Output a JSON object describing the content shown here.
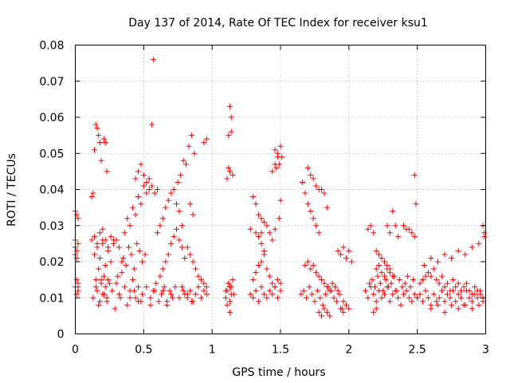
{
  "chart_data": {
    "type": "scatter",
    "title": "Day 137 of 2014, Rate Of TEC Index for receiver ksu1",
    "xlabel": "GPS time / hours",
    "ylabel": "ROTI / TECUs",
    "xlim": [
      0,
      3
    ],
    "ylim": [
      0,
      0.08
    ],
    "x_ticks": [
      0,
      0.5,
      1,
      1.5,
      2,
      2.5,
      3
    ],
    "x_tick_labels": [
      "0",
      "0.5",
      "1",
      "1.5",
      "2",
      "2.5",
      "3"
    ],
    "y_ticks": [
      0,
      0.01,
      0.02,
      0.03,
      0.04,
      0.05,
      0.06,
      0.07,
      0.08
    ],
    "y_tick_labels": [
      "0",
      "0.01",
      "0.02",
      "0.03",
      "0.04",
      "0.05",
      "0.06",
      "0.07",
      "0.08"
    ],
    "grid": true,
    "marker": "+",
    "color": "#ff0000",
    "series": [
      {
        "name": "ROTI",
        "x": [
          0.0,
          0.01,
          0.02,
          0.01,
          0.0,
          0.02,
          0.01,
          0.0,
          0.02,
          0.01,
          0.0,
          0.02,
          0.01,
          0.0,
          0.02,
          0.12,
          0.13,
          0.14,
          0.15,
          0.16,
          0.17,
          0.18,
          0.19,
          0.2,
          0.21,
          0.22,
          0.23,
          0.15,
          0.16,
          0.17,
          0.18,
          0.19,
          0.2,
          0.21,
          0.22,
          0.23,
          0.24,
          0.14,
          0.16,
          0.18,
          0.2,
          0.22,
          0.24,
          0.26,
          0.28,
          0.13,
          0.15,
          0.17,
          0.19,
          0.21,
          0.23,
          0.25,
          0.27,
          0.29,
          0.31,
          0.33,
          0.12,
          0.14,
          0.16,
          0.18,
          0.2,
          0.22,
          0.24,
          0.26,
          0.28,
          0.3,
          0.32,
          0.34,
          0.3,
          0.32,
          0.34,
          0.36,
          0.38,
          0.4,
          0.42,
          0.44,
          0.46,
          0.48,
          0.35,
          0.37,
          0.39,
          0.41,
          0.43,
          0.45,
          0.47,
          0.49,
          0.51,
          0.36,
          0.38,
          0.4,
          0.42,
          0.44,
          0.46,
          0.48,
          0.5,
          0.52,
          0.54,
          0.4,
          0.43,
          0.46,
          0.49,
          0.52,
          0.55,
          0.58,
          0.44,
          0.46,
          0.48,
          0.5,
          0.52,
          0.54,
          0.56,
          0.58,
          0.6,
          0.57,
          0.56,
          0.55,
          0.57,
          0.59,
          0.61,
          0.63,
          0.65,
          0.67,
          0.69,
          0.71,
          0.6,
          0.62,
          0.64,
          0.66,
          0.68,
          0.7,
          0.72,
          0.74,
          0.76,
          0.78,
          0.62,
          0.64,
          0.66,
          0.68,
          0.7,
          0.72,
          0.74,
          0.76,
          0.78,
          0.8,
          0.64,
          0.67,
          0.7,
          0.73,
          0.76,
          0.79,
          0.82,
          0.85,
          0.75,
          0.77,
          0.79,
          0.81,
          0.83,
          0.85,
          0.87,
          0.78,
          0.8,
          0.82,
          0.84,
          0.86,
          0.88,
          0.9,
          0.92,
          0.94,
          0.96,
          0.82,
          0.84,
          0.86,
          0.88,
          0.9,
          0.92,
          0.94,
          0.96,
          0.84,
          0.86,
          0.94,
          0.96,
          1.1,
          1.11,
          1.12,
          1.13,
          1.14,
          1.15,
          1.12,
          1.13,
          1.14,
          1.11,
          1.12,
          1.13,
          1.14,
          1.15,
          1.11,
          1.13,
          1.1,
          1.12,
          1.14,
          1.16,
          1.13,
          1.28,
          1.3,
          1.32,
          1.34,
          1.36,
          1.38,
          1.4,
          1.42,
          1.44,
          1.46,
          1.48,
          1.5,
          1.3,
          1.32,
          1.34,
          1.36,
          1.38,
          1.4,
          1.42,
          1.44,
          1.46,
          1.48,
          1.5,
          1.32,
          1.34,
          1.36,
          1.38,
          1.4,
          1.42,
          1.44,
          1.46,
          1.3,
          1.32,
          1.34,
          1.36,
          1.38,
          1.44,
          1.46,
          1.48,
          1.28,
          1.36,
          1.46,
          1.47,
          1.48,
          1.49,
          1.5,
          1.51,
          1.5,
          1.49,
          1.65,
          1.67,
          1.69,
          1.71,
          1.73,
          1.75,
          1.77,
          1.79,
          1.81,
          1.83,
          1.85,
          1.87,
          1.89,
          1.91,
          1.93,
          1.95,
          1.68,
          1.7,
          1.72,
          1.74,
          1.76,
          1.78,
          1.8,
          1.82,
          1.84,
          1.86,
          1.88,
          1.9,
          1.92,
          1.7,
          1.72,
          1.74,
          1.76,
          1.78,
          1.8,
          1.82,
          1.84,
          1.66,
          1.68,
          1.7,
          1.72,
          1.74,
          1.76,
          1.78,
          1.78,
          1.8,
          1.82,
          1.84,
          1.86,
          1.92,
          1.94,
          1.96,
          1.98,
          2.0,
          2.02,
          1.94,
          1.96,
          1.98,
          2.0,
          1.96,
          2.12,
          2.14,
          2.16,
          2.18,
          2.2,
          2.22,
          2.24,
          2.26,
          2.28,
          2.3,
          2.32,
          2.34,
          2.36,
          2.38,
          2.4,
          2.42,
          2.44,
          2.46,
          2.48,
          2.5,
          2.15,
          2.17,
          2.19,
          2.21,
          2.23,
          2.25,
          2.27,
          2.29,
          2.31,
          2.33,
          2.35,
          2.37,
          2.39,
          2.41,
          2.43,
          2.45,
          2.47,
          2.14,
          2.16,
          2.18,
          2.2,
          2.22,
          2.24,
          2.26,
          2.28,
          2.3,
          2.2,
          2.22,
          2.24,
          2.26,
          2.28,
          2.3,
          2.32,
          2.18,
          2.2,
          2.28,
          2.3,
          2.32,
          2.34,
          2.36,
          2.4,
          2.42,
          2.44,
          2.46,
          2.48,
          2.49,
          2.48,
          2.5,
          2.52,
          2.54,
          2.56,
          2.58,
          2.6,
          2.62,
          2.64,
          2.66,
          2.68,
          2.7,
          2.72,
          2.74,
          2.76,
          2.78,
          2.8,
          2.82,
          2.84,
          2.86,
          2.88,
          2.9,
          2.92,
          2.94,
          2.96,
          2.98,
          2.52,
          2.54,
          2.56,
          2.58,
          2.6,
          2.62,
          2.64,
          2.66,
          2.68,
          2.7,
          2.72,
          2.74,
          2.76,
          2.78,
          2.8,
          2.82,
          2.84,
          2.86,
          2.88,
          2.9,
          2.92,
          2.94,
          2.96,
          2.98,
          2.55,
          2.6,
          2.65,
          2.7,
          2.75,
          2.8,
          2.85,
          2.9,
          2.95,
          2.99,
          2.6,
          2.65,
          2.7,
          2.75,
          2.8,
          2.85,
          2.9,
          2.95,
          2.98,
          2.99
        ],
        "y": [
          0.013,
          0.011,
          0.014,
          0.021,
          0.024,
          0.025,
          0.023,
          0.022,
          0.012,
          0.033,
          0.034,
          0.032,
          0.015,
          0.026,
          0.013,
          0.038,
          0.039,
          0.051,
          0.058,
          0.057,
          0.055,
          0.053,
          0.048,
          0.026,
          0.054,
          0.053,
          0.045,
          0.015,
          0.012,
          0.018,
          0.009,
          0.014,
          0.011,
          0.016,
          0.013,
          0.01,
          0.015,
          0.022,
          0.024,
          0.021,
          0.025,
          0.019,
          0.023,
          0.02,
          0.026,
          0.01,
          0.013,
          0.008,
          0.015,
          0.011,
          0.009,
          0.014,
          0.012,
          0.007,
          0.016,
          0.01,
          0.026,
          0.027,
          0.025,
          0.028,
          0.029,
          0.026,
          0.024,
          0.027,
          0.025,
          0.026,
          0.024,
          0.02,
          0.014,
          0.011,
          0.017,
          0.013,
          0.008,
          0.012,
          0.015,
          0.01,
          0.013,
          0.009,
          0.021,
          0.019,
          0.024,
          0.022,
          0.018,
          0.025,
          0.023,
          0.02,
          0.022,
          0.028,
          0.032,
          0.03,
          0.035,
          0.033,
          0.038,
          0.036,
          0.041,
          0.039,
          0.043,
          0.01,
          0.012,
          0.009,
          0.011,
          0.013,
          0.008,
          0.012,
          0.043,
          0.045,
          0.047,
          0.044,
          0.042,
          0.04,
          0.041,
          0.039,
          0.04,
          0.076,
          0.058,
          0.01,
          0.012,
          0.014,
          0.009,
          0.011,
          0.013,
          0.008,
          0.012,
          0.01,
          0.028,
          0.03,
          0.032,
          0.035,
          0.037,
          0.039,
          0.04,
          0.036,
          0.034,
          0.03,
          0.016,
          0.018,
          0.02,
          0.022,
          0.025,
          0.027,
          0.029,
          0.026,
          0.024,
          0.021,
          0.012,
          0.009,
          0.011,
          0.013,
          0.01,
          0.012,
          0.011,
          0.009,
          0.042,
          0.044,
          0.048,
          0.047,
          0.052,
          0.055,
          0.05,
          0.013,
          0.011,
          0.01,
          0.012,
          0.009,
          0.011,
          0.013,
          0.01,
          0.012,
          0.011,
          0.024,
          0.022,
          0.02,
          0.018,
          0.016,
          0.015,
          0.014,
          0.013,
          0.036,
          0.033,
          0.053,
          0.054,
          0.01,
          0.012,
          0.014,
          0.013,
          0.011,
          0.015,
          0.055,
          0.063,
          0.06,
          0.043,
          0.046,
          0.045,
          0.056,
          0.044,
          0.008,
          0.009,
          0.012,
          0.014,
          0.013,
          0.011,
          0.006,
          0.011,
          0.01,
          0.012,
          0.009,
          0.013,
          0.011,
          0.01,
          0.012,
          0.011,
          0.013,
          0.01,
          0.012,
          0.015,
          0.017,
          0.019,
          0.02,
          0.022,
          0.018,
          0.016,
          0.014,
          0.013,
          0.015,
          0.014,
          0.028,
          0.027,
          0.025,
          0.023,
          0.03,
          0.028,
          0.026,
          0.029,
          0.038,
          0.036,
          0.033,
          0.032,
          0.031,
          0.045,
          0.047,
          0.049,
          0.029,
          0.028,
          0.051,
          0.046,
          0.05,
          0.047,
          0.052,
          0.049,
          0.037,
          0.032,
          0.011,
          0.012,
          0.01,
          0.013,
          0.011,
          0.009,
          0.012,
          0.01,
          0.008,
          0.011,
          0.013,
          0.012,
          0.01,
          0.009,
          0.011,
          0.007,
          0.019,
          0.02,
          0.018,
          0.019,
          0.017,
          0.016,
          0.015,
          0.014,
          0.013,
          0.012,
          0.014,
          0.013,
          0.012,
          0.046,
          0.044,
          0.043,
          0.041,
          0.04,
          0.04,
          0.039,
          0.035,
          0.042,
          0.039,
          0.036,
          0.034,
          0.032,
          0.03,
          0.028,
          0.006,
          0.005,
          0.007,
          0.006,
          0.005,
          0.023,
          0.022,
          0.024,
          0.021,
          0.023,
          0.02,
          0.007,
          0.006,
          0.008,
          0.007,
          0.009,
          0.012,
          0.01,
          0.013,
          0.011,
          0.009,
          0.012,
          0.01,
          0.011,
          0.013,
          0.009,
          0.011,
          0.012,
          0.01,
          0.008,
          0.011,
          0.012,
          0.01,
          0.009,
          0.011,
          0.01,
          0.014,
          0.015,
          0.013,
          0.016,
          0.014,
          0.012,
          0.015,
          0.013,
          0.014,
          0.016,
          0.012,
          0.015,
          0.013,
          0.014,
          0.016,
          0.013,
          0.015,
          0.029,
          0.03,
          0.028,
          0.023,
          0.022,
          0.021,
          0.02,
          0.019,
          0.018,
          0.018,
          0.019,
          0.017,
          0.016,
          0.018,
          0.017,
          0.016,
          0.006,
          0.007,
          0.03,
          0.028,
          0.034,
          0.03,
          0.027,
          0.03,
          0.029,
          0.029,
          0.028,
          0.027,
          0.036,
          0.044,
          0.01,
          0.011,
          0.009,
          0.012,
          0.01,
          0.008,
          0.011,
          0.009,
          0.01,
          0.012,
          0.009,
          0.011,
          0.01,
          0.012,
          0.009,
          0.011,
          0.01,
          0.008,
          0.012,
          0.01,
          0.009,
          0.011,
          0.01,
          0.012,
          0.009,
          0.014,
          0.015,
          0.016,
          0.017,
          0.016,
          0.018,
          0.015,
          0.014,
          0.016,
          0.013,
          0.014,
          0.012,
          0.015,
          0.013,
          0.014,
          0.012,
          0.013,
          0.014,
          0.012,
          0.011,
          0.013,
          0.012,
          0.011,
          0.01,
          0.019,
          0.021,
          0.02,
          0.022,
          0.021,
          0.023,
          0.022,
          0.024,
          0.025,
          0.027,
          0.007,
          0.008,
          0.006,
          0.008,
          0.007,
          0.008,
          0.007,
          0.008,
          0.03,
          0.028
        ]
      }
    ]
  }
}
